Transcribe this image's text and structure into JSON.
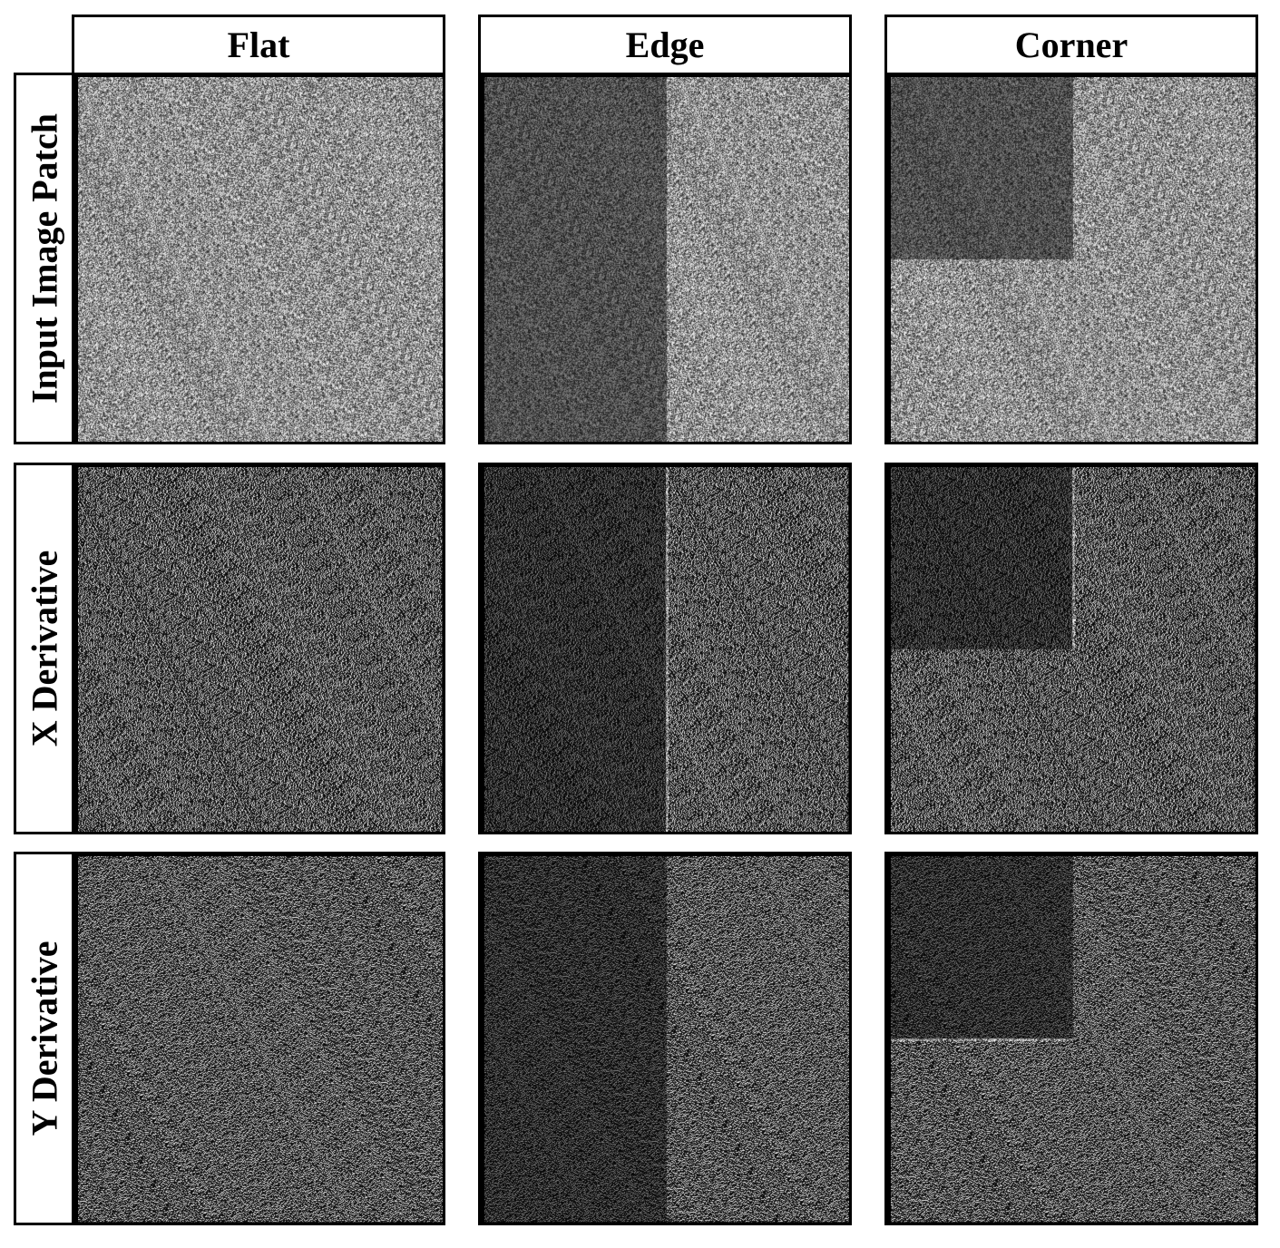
{
  "columns": [
    "Flat",
    "Edge",
    "Corner"
  ],
  "rows": [
    "Input Image Patch",
    "X Derivative",
    "Y Derivative"
  ],
  "panels": [
    [
      {
        "kind": "input",
        "pattern": "flat"
      },
      {
        "kind": "input",
        "pattern": "edge"
      },
      {
        "kind": "input",
        "pattern": "corner"
      }
    ],
    [
      {
        "kind": "x-derivative",
        "pattern": "flat"
      },
      {
        "kind": "x-derivative",
        "pattern": "edge"
      },
      {
        "kind": "x-derivative",
        "pattern": "corner"
      }
    ],
    [
      {
        "kind": "y-derivative",
        "pattern": "flat"
      },
      {
        "kind": "y-derivative",
        "pattern": "edge"
      },
      {
        "kind": "y-derivative",
        "pattern": "corner"
      }
    ]
  ],
  "colors": {
    "border": "#000000",
    "background": "#ffffff"
  }
}
